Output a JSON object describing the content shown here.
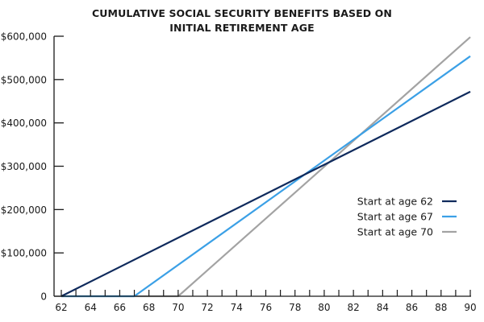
{
  "chart_data": {
    "type": "line",
    "title_lines": [
      "CUMULATIVE SOCIAL SECURITY BENEFITS BASED ON",
      "INITIAL RETIREMENT AGE"
    ],
    "xlabel": "",
    "ylabel": "",
    "xlim": [
      62,
      90
    ],
    "ylim": [
      0,
      600000
    ],
    "x_ticks": [
      62,
      64,
      66,
      68,
      70,
      72,
      74,
      76,
      78,
      80,
      82,
      84,
      86,
      88,
      90
    ],
    "x_minor_ticks": [
      63,
      65,
      67,
      69,
      71,
      73,
      75,
      77,
      79,
      81,
      83,
      85,
      87,
      89
    ],
    "y_ticks": [
      0,
      100000,
      200000,
      300000,
      400000,
      500000,
      600000
    ],
    "y_tick_labels": [
      "0",
      "$100,000",
      "$200,000",
      "$300,000",
      "$400,000",
      "$500,000",
      "$600,000"
    ],
    "grid": false,
    "legend_position": "right",
    "series": [
      {
        "name": "Start at age 62",
        "color": "#0f2a5c",
        "points": [
          [
            62,
            0
          ],
          [
            90,
            472000
          ]
        ]
      },
      {
        "name": "Start at age 67",
        "color": "#3ba0e6",
        "points": [
          [
            62,
            0
          ],
          [
            67,
            0
          ],
          [
            90,
            554000
          ]
        ]
      },
      {
        "name": "Start at age 70",
        "color": "#a3a3a3",
        "points": [
          [
            62,
            0
          ],
          [
            70,
            0
          ],
          [
            90,
            598000
          ]
        ]
      }
    ]
  }
}
